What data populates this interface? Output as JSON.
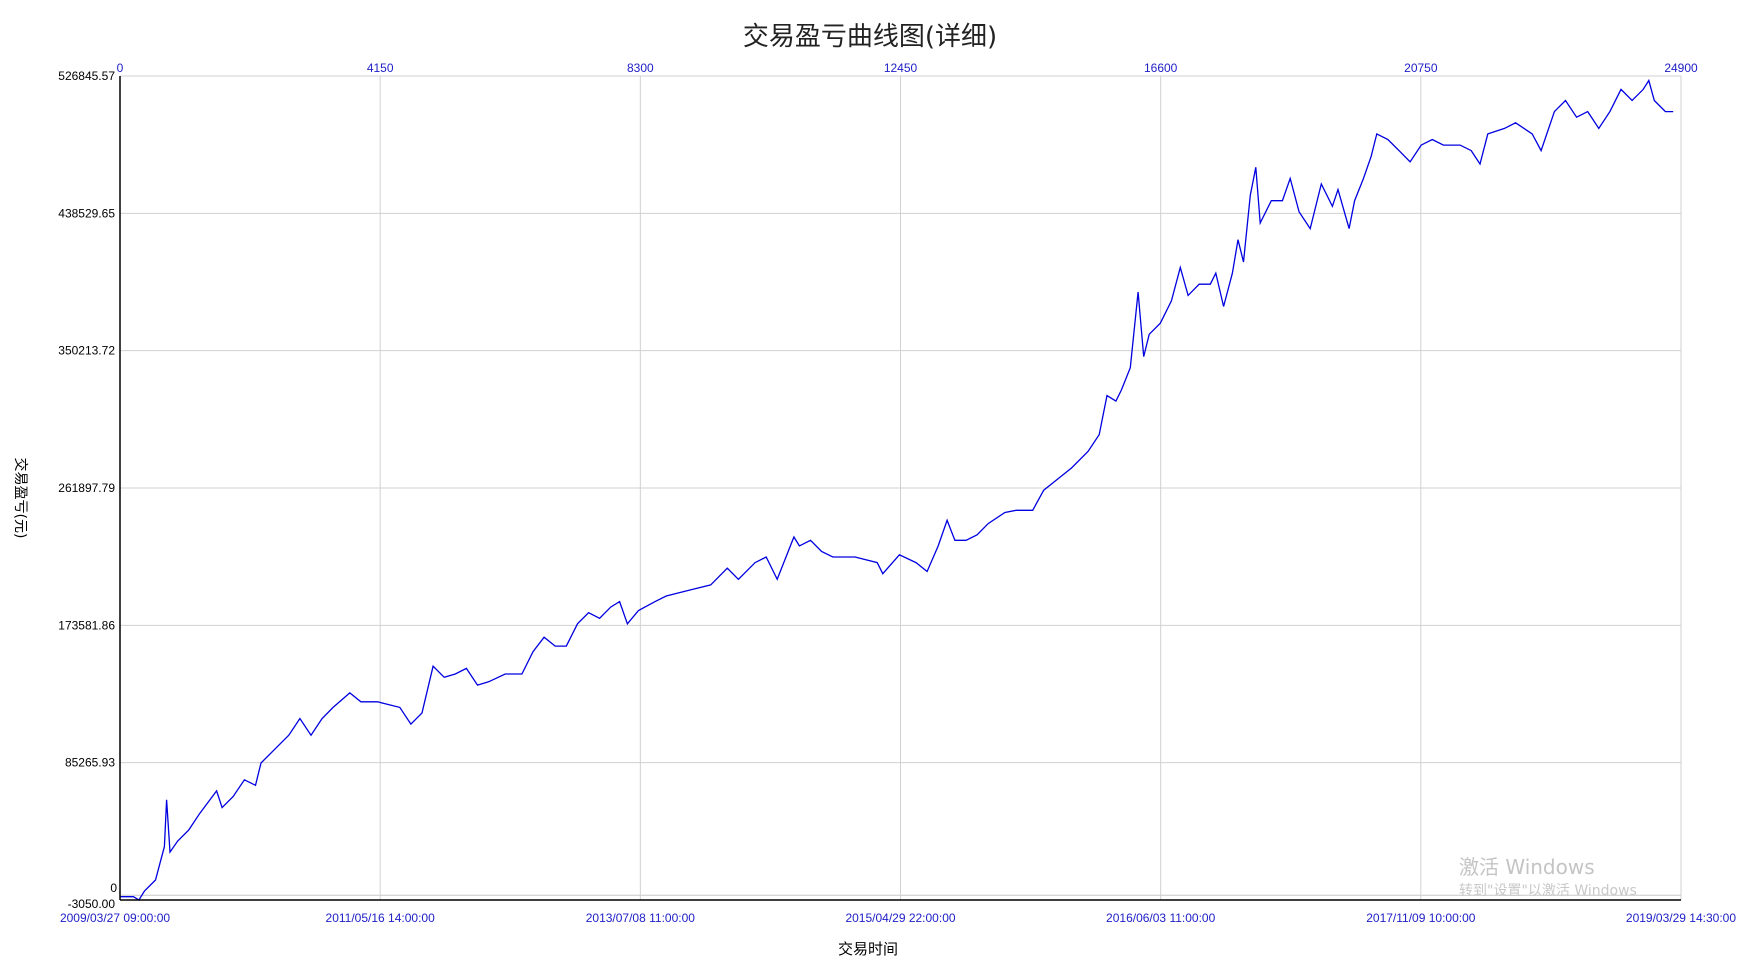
{
  "chart_data": {
    "type": "line",
    "title": "交易盈亏曲线图(详细)",
    "xlabel": "交易时间",
    "ylabel": "交易盈亏(元)",
    "xlim": [
      0,
      24900
    ],
    "ylim": [
      -3050.0,
      526845.57
    ],
    "grid": true,
    "line_color": "#0000e0",
    "top_x_ticks": [
      "0",
      "4150",
      "8300",
      "12450",
      "16600",
      "20750",
      "24900"
    ],
    "top_x_tick_values": [
      0,
      4150,
      8300,
      12450,
      16600,
      20750,
      24900
    ],
    "bottom_x_ticks": [
      "2009/03/27 09:00:00",
      "2011/05/16 14:00:00",
      "2013/07/08 11:00:00",
      "2015/04/29 22:00:00",
      "2016/06/03 11:00:00",
      "2017/11/09 10:00:00",
      "2019/03/29 14:30:00"
    ],
    "y_ticks": [
      "-3050.00",
      "85265.93",
      "173581.86",
      "261897.79",
      "350213.72",
      "438529.65",
      "526845.57"
    ],
    "y_tick_values": [
      -3050.0,
      85265.93,
      173581.86,
      261897.79,
      350213.72,
      438529.65,
      526845.57
    ],
    "zero_label": "0",
    "series": [
      {
        "points": [
          [
            0,
            -900
          ],
          [
            213,
            -900
          ],
          [
            301,
            -3050
          ],
          [
            390,
            2680
          ],
          [
            567,
            9840
          ],
          [
            708,
            31320
          ],
          [
            744,
            61400
          ],
          [
            797,
            27740
          ],
          [
            921,
            34900
          ],
          [
            1098,
            42060
          ],
          [
            1275,
            52800
          ],
          [
            1541,
            67120
          ],
          [
            1629,
            56380
          ],
          [
            1806,
            63540
          ],
          [
            1984,
            74280
          ],
          [
            2161,
            70700
          ],
          [
            2249,
            85020
          ],
          [
            2515,
            95760
          ],
          [
            2692,
            102920
          ],
          [
            2869,
            113670
          ],
          [
            3046,
            102920
          ],
          [
            3223,
            113670
          ],
          [
            3400,
            120830
          ],
          [
            3666,
            130140
          ],
          [
            3843,
            124410
          ],
          [
            4109,
            124410
          ],
          [
            4463,
            120830
          ],
          [
            4640,
            110090
          ],
          [
            4817,
            117250
          ],
          [
            4994,
            147320
          ],
          [
            5171,
            140160
          ],
          [
            5348,
            142310
          ],
          [
            5526,
            145890
          ],
          [
            5703,
            135150
          ],
          [
            5880,
            137300
          ],
          [
            6145,
            142310
          ],
          [
            6411,
            142310
          ],
          [
            6588,
            156630
          ],
          [
            6765,
            165940
          ],
          [
            6942,
            160210
          ],
          [
            7119,
            160210
          ],
          [
            7297,
            174540
          ],
          [
            7474,
            181700
          ],
          [
            7651,
            178120
          ],
          [
            7828,
            185280
          ],
          [
            7970,
            188860
          ],
          [
            8094,
            174540
          ],
          [
            8271,
            183130
          ],
          [
            8536,
            188860
          ],
          [
            8713,
            192440
          ],
          [
            9068,
            196020
          ],
          [
            9422,
            199600
          ],
          [
            9687,
            210340
          ],
          [
            9864,
            203180
          ],
          [
            10130,
            213920
          ],
          [
            10307,
            217500
          ],
          [
            10484,
            203180
          ],
          [
            10750,
            230390
          ],
          [
            10838,
            224660
          ],
          [
            11015,
            228240
          ],
          [
            11192,
            221080
          ],
          [
            11370,
            217500
          ],
          [
            11724,
            217500
          ],
          [
            12078,
            213920
          ],
          [
            12167,
            206760
          ],
          [
            12432,
            218930
          ],
          [
            12698,
            213920
          ],
          [
            12875,
            208190
          ],
          [
            13052,
            224660
          ],
          [
            13194,
            241130
          ],
          [
            13318,
            228240
          ],
          [
            13495,
            228240
          ],
          [
            13672,
            231820
          ],
          [
            13849,
            238980
          ],
          [
            14115,
            246140
          ],
          [
            14292,
            247570
          ],
          [
            14558,
            247570
          ],
          [
            14735,
            260460
          ],
          [
            15000,
            269060
          ],
          [
            15177,
            274780
          ],
          [
            15443,
            285520
          ],
          [
            15620,
            296270
          ],
          [
            15744,
            321330
          ],
          [
            15886,
            317750
          ],
          [
            15974,
            324910
          ],
          [
            16116,
            339230
          ],
          [
            16240,
            387930
          ],
          [
            16329,
            346390
          ],
          [
            16417,
            360710
          ],
          [
            16594,
            367880
          ],
          [
            16771,
            382200
          ],
          [
            16913,
            403680
          ],
          [
            17037,
            385780
          ],
          [
            17214,
            392940
          ],
          [
            17391,
            392940
          ],
          [
            17480,
            400100
          ],
          [
            17604,
            378620
          ],
          [
            17745,
            400100
          ],
          [
            17834,
            421580
          ],
          [
            17922,
            407260
          ],
          [
            18029,
            450220
          ],
          [
            18117,
            468120
          ],
          [
            18188,
            432320
          ],
          [
            18365,
            446640
          ],
          [
            18542,
            446640
          ],
          [
            18666,
            460970
          ],
          [
            18808,
            439480
          ],
          [
            18985,
            428740
          ],
          [
            19162,
            457380
          ],
          [
            19339,
            443060
          ],
          [
            19428,
            453800
          ],
          [
            19605,
            428740
          ],
          [
            19693,
            446640
          ],
          [
            19835,
            460970
          ],
          [
            19959,
            475280
          ],
          [
            20048,
            489600
          ],
          [
            20225,
            486020
          ],
          [
            20402,
            478860
          ],
          [
            20579,
            471700
          ],
          [
            20756,
            482440
          ],
          [
            20933,
            486020
          ],
          [
            21110,
            482440
          ],
          [
            21376,
            482440
          ],
          [
            21553,
            478860
          ],
          [
            21694,
            470270
          ],
          [
            21818,
            489600
          ],
          [
            22084,
            493180
          ],
          [
            22261,
            496760
          ],
          [
            22527,
            489600
          ],
          [
            22668,
            478860
          ],
          [
            22881,
            503920
          ],
          [
            23058,
            511080
          ],
          [
            23235,
            500350
          ],
          [
            23412,
            503920
          ],
          [
            23589,
            493180
          ],
          [
            23766,
            503920
          ],
          [
            23943,
            518250
          ],
          [
            24120,
            511080
          ],
          [
            24297,
            518250
          ],
          [
            24386,
            523980
          ],
          [
            24474,
            511080
          ],
          [
            24651,
            503920
          ],
          [
            24775,
            503920
          ]
        ]
      }
    ]
  },
  "watermark": {
    "line1": "激活 Windows",
    "line2": "转到\"设置\"以激活 Windows"
  }
}
